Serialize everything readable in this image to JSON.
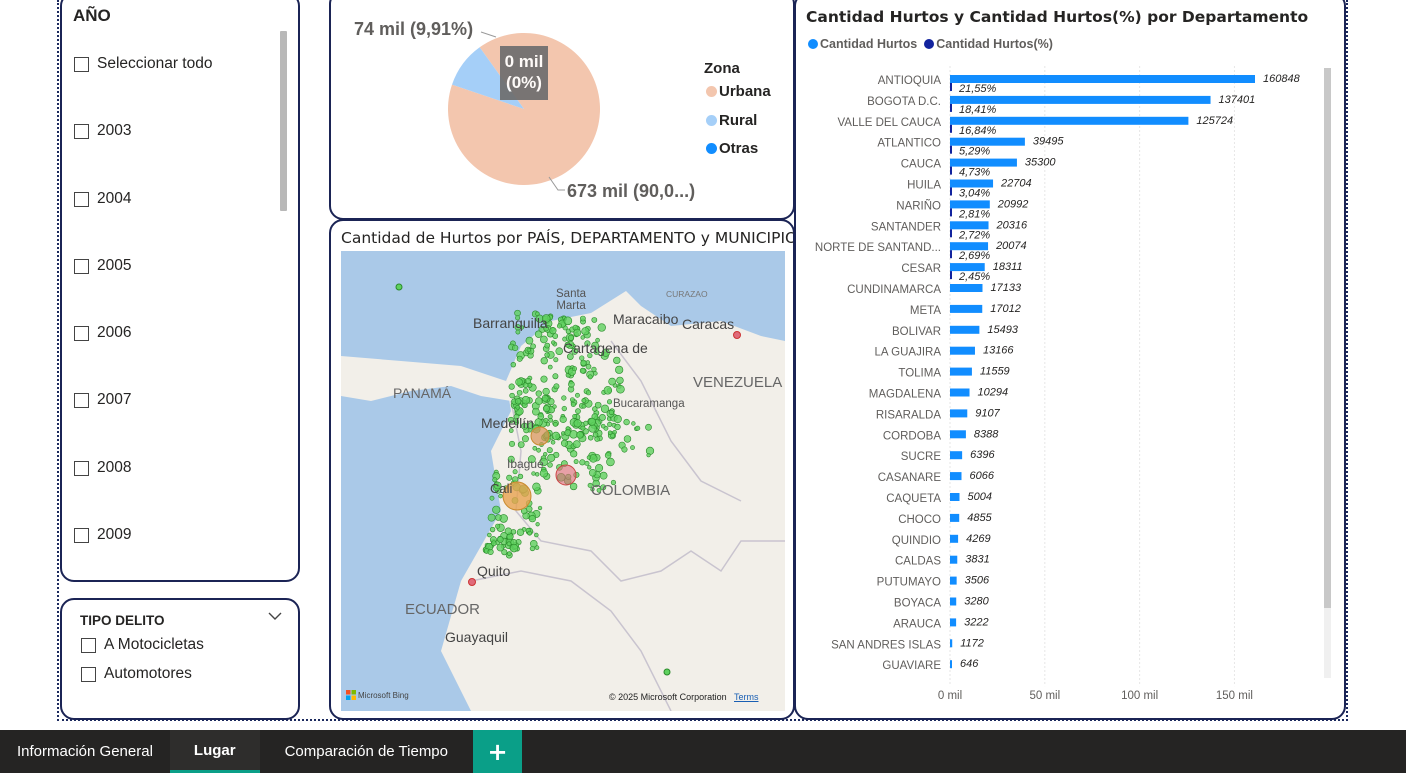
{
  "year_slicer": {
    "title": "AÑO",
    "items": [
      "Seleccionar todo",
      "2003",
      "2004",
      "2005",
      "2006",
      "2007",
      "2008",
      "2009"
    ]
  },
  "tipo_delito": {
    "title": "TIPO DELITO",
    "items": [
      "A Motocicletas",
      "Automotores"
    ]
  },
  "pie": {
    "legend_title": "Zona",
    "legend": [
      {
        "label": "Urbana",
        "color": "#f3c6ae"
      },
      {
        "label": "Rural",
        "color": "#a5cff8"
      },
      {
        "label": "Otras",
        "color": "#118dff"
      }
    ],
    "label_rural": "74 mil (9,91%)",
    "label_urbana": "673 mil (90,0...)",
    "tooltip_line1": "0 mil",
    "tooltip_line2": "(0%)",
    "chart_data": {
      "type": "pie",
      "categories": [
        "Urbana",
        "Rural",
        "Otras"
      ],
      "values": [
        673,
        74,
        0
      ],
      "percent": [
        90.09,
        9.91,
        0
      ]
    }
  },
  "map": {
    "title": "Cantidad de Hurtos por PAÍS, DEPARTAMENTO y MUNICIPIO",
    "labels": {
      "santa_marta_1": "Santa",
      "santa_marta_2": "Marta",
      "curazao": "CURAZAO",
      "barranquilla": "Barranquilla",
      "maracaibo": "Maracaibo",
      "caracas": "Caracas",
      "cartagena": "Cartagena de",
      "panama": "PANAMÁ",
      "venezuela": "VENEZUELA",
      "bucaramanga": "Bucaramanga",
      "medellin": "Medellín",
      "ibague": "Ibagué",
      "cali": "Cali",
      "colombia": "COLOMBIA",
      "quito": "Quito",
      "ecuador": "ECUADOR",
      "guayaquil": "Guayaquil"
    },
    "attribution": "© 2025 Microsoft Corporation",
    "terms": "Terms",
    "bing": "Microsoft Bing"
  },
  "bar_chart": {
    "title": "Cantidad Hurtos y Cantidad Hurtos(%) por Departamento",
    "legend": [
      {
        "label": "Cantidad Hurtos",
        "color": "#118dff"
      },
      {
        "label": "Cantidad Hurtos(%)",
        "color": "#12239e"
      }
    ],
    "x_ticks": [
      "0 mil",
      "50 mil",
      "100 mil",
      "150 mil"
    ],
    "chart_data": {
      "type": "bar",
      "orientation": "horizontal",
      "xlim": [
        0,
        180000
      ],
      "categories": [
        "ANTIOQUIA",
        "BOGOTA D.C.",
        "VALLE DEL CAUCA",
        "ATLANTICO",
        "CAUCA",
        "HUILA",
        "NARIÑO",
        "SANTANDER",
        "NORTE DE SANTAND...",
        "CESAR",
        "CUNDINAMARCA",
        "META",
        "BOLIVAR",
        "LA GUAJIRA",
        "TOLIMA",
        "MAGDALENA",
        "RISARALDA",
        "CORDOBA",
        "SUCRE",
        "CASANARE",
        "CAQUETA",
        "CHOCO",
        "QUINDIO",
        "CALDAS",
        "PUTUMAYO",
        "BOYACA",
        "ARAUCA",
        "SAN ANDRES ISLAS",
        "GUAVIARE"
      ],
      "series": [
        {
          "name": "Cantidad Hurtos",
          "values": [
            160848,
            137401,
            125724,
            39495,
            35300,
            22704,
            20992,
            20316,
            20074,
            18311,
            17133,
            17012,
            15493,
            13166,
            11559,
            10294,
            9107,
            8388,
            6396,
            6066,
            5004,
            4855,
            4269,
            3831,
            3506,
            3280,
            3222,
            1172,
            646
          ]
        },
        {
          "name": "Cantidad Hurtos(%)",
          "values": [
            "21,55%",
            "18,41%",
            "16,84%",
            "5,29%",
            "4,73%",
            "3,04%",
            "2,81%",
            "2,72%",
            "2,69%",
            "2,45%",
            null,
            null,
            null,
            null,
            null,
            null,
            null,
            null,
            null,
            null,
            null,
            null,
            null,
            null,
            null,
            null,
            null,
            null,
            null
          ]
        }
      ]
    }
  },
  "tabs": {
    "items": [
      "Información General",
      "Lugar",
      "Comparación de Tiempo"
    ],
    "active": "Lugar",
    "add_label": "+"
  }
}
